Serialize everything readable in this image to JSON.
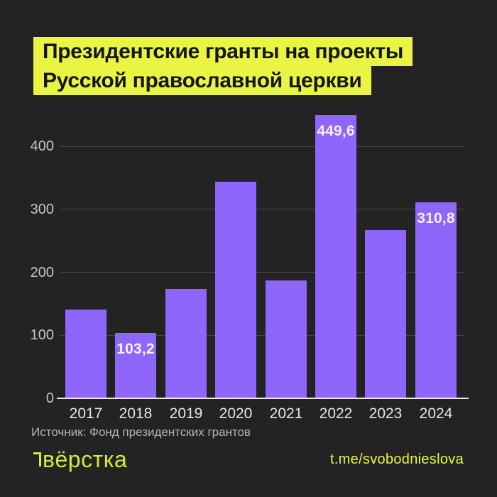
{
  "title": {
    "line1": "Президентские гранты на проекты",
    "line2": "Русской православной церкви"
  },
  "source_note": "Источник: Фонд президентских грантов",
  "footer": {
    "logo_text": "вёрстка",
    "channel": "t.me/svobodnieslova"
  },
  "colors": {
    "background": "#232323",
    "bar": "#8f66fb",
    "accent_yellow": "#e9f542",
    "logo_yellow": "#d9e93e",
    "title_text": "#161616",
    "grid": "#454545",
    "axis": "#ececec",
    "tick_label": "#c6c6c6",
    "year_label": "#e6e6e6",
    "bar_label": "#f3f1fb",
    "source_text": "#b5b5b5"
  },
  "chart_data": {
    "type": "bar",
    "title": "Президентские гранты на проекты Русской православной церкви",
    "categories": [
      "2017",
      "2018",
      "2019",
      "2020",
      "2021",
      "2022",
      "2023",
      "2024"
    ],
    "values": [
      141,
      103.2,
      174,
      344,
      187,
      449.6,
      267,
      310.8
    ],
    "point_labels": [
      "",
      "103,2",
      "",
      "",
      "",
      "449,6",
      "",
      "310,8"
    ],
    "y_ticks": [
      0,
      100,
      200,
      300,
      400
    ],
    "ylim": [
      0,
      460
    ],
    "xlabel": "",
    "ylabel": "",
    "grid": "horizontal",
    "legend": "none"
  }
}
